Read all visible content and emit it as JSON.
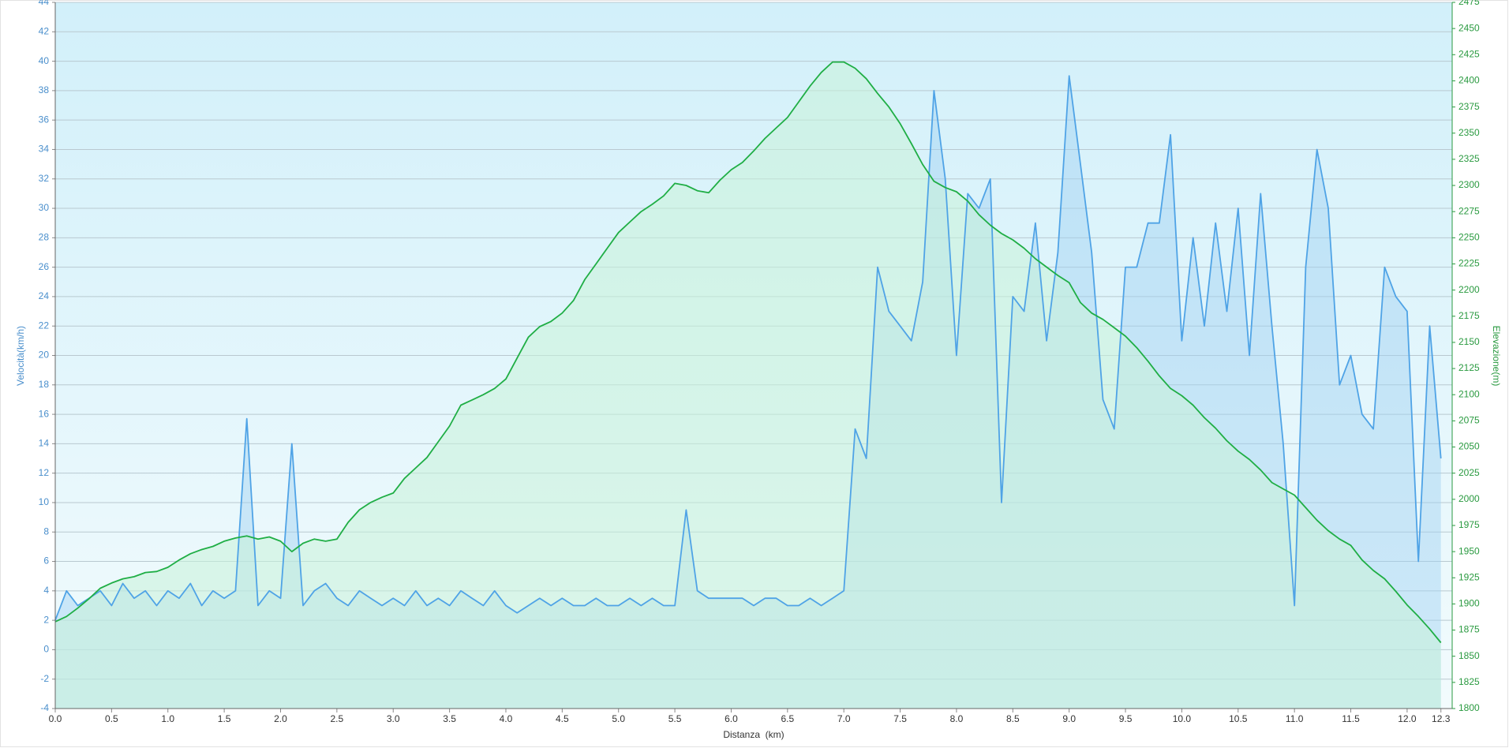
{
  "chart_data": {
    "type": "line",
    "xlabel": "Distanza  (km)",
    "ylabel": "Velocità(km/h)",
    "y2label": "Elevazione(m)",
    "x": [
      0,
      0.1,
      0.2,
      0.3,
      0.4,
      0.5,
      0.6,
      0.7,
      0.8,
      0.9,
      1,
      1.1,
      1.2,
      1.3,
      1.4,
      1.5,
      1.6,
      1.7,
      1.8,
      1.9,
      2,
      2.1,
      2.2,
      2.3,
      2.4,
      2.5,
      2.6,
      2.7,
      2.8,
      2.9,
      3,
      3.1,
      3.2,
      3.3,
      3.4,
      3.5,
      3.6,
      3.7,
      3.8,
      3.9,
      4,
      4.1,
      4.2,
      4.3,
      4.4,
      4.5,
      4.6,
      4.7,
      4.8,
      4.9,
      5,
      5.1,
      5.2,
      5.3,
      5.4,
      5.5,
      5.6,
      5.7,
      5.8,
      5.9,
      6,
      6.1,
      6.2,
      6.3,
      6.4,
      6.5,
      6.6,
      6.7,
      6.8,
      6.9,
      7,
      7.1,
      7.2,
      7.3,
      7.4,
      7.5,
      7.6,
      7.7,
      7.8,
      7.9,
      8,
      8.1,
      8.2,
      8.3,
      8.4,
      8.5,
      8.6,
      8.7,
      8.8,
      8.9,
      9,
      9.1,
      9.2,
      9.3,
      9.4,
      9.5,
      9.6,
      9.7,
      9.8,
      9.9,
      10,
      10.1,
      10.2,
      10.3,
      10.4,
      10.5,
      10.6,
      10.7,
      10.8,
      10.9,
      11,
      11.1,
      11.2,
      11.3,
      11.4,
      11.5,
      11.6,
      11.7,
      11.8,
      11.9,
      12,
      12.1,
      12.2,
      12.3
    ],
    "series": [
      {
        "name": "Velocità",
        "color": "#4fa3e6",
        "fill": "#9fd0f2",
        "values": [
          2,
          4,
          3,
          3.5,
          4,
          3,
          4.5,
          3.5,
          4,
          3,
          4,
          3.5,
          4.5,
          3,
          4,
          3.5,
          4,
          15.7,
          3,
          4,
          3.5,
          14,
          3,
          4,
          4.5,
          3.5,
          3,
          4,
          3.5,
          3,
          3.5,
          3,
          4,
          3,
          3.5,
          3,
          4,
          3.5,
          3,
          4,
          3,
          2.5,
          3,
          3.5,
          3,
          3.5,
          3,
          3,
          3.5,
          3,
          3,
          3.5,
          3,
          3.5,
          3,
          3,
          9.5,
          4,
          3.5,
          3.5,
          3.5,
          3.5,
          3,
          3.5,
          3.5,
          3,
          3,
          3.5,
          3,
          3.5,
          4,
          15,
          13,
          26,
          23,
          22,
          21,
          25,
          38,
          32,
          20,
          31,
          30,
          32,
          10,
          24,
          23,
          29,
          21,
          27,
          39,
          33,
          27,
          17,
          15,
          26,
          26,
          29,
          29,
          35,
          21,
          28,
          22,
          29,
          23,
          30,
          20,
          31,
          22,
          14,
          3,
          26,
          34,
          30,
          18,
          20,
          16,
          15,
          26,
          24,
          23,
          6,
          22,
          13
        ]
      },
      {
        "name": "Elevazione",
        "color": "#1fae45",
        "fill": "#c8f2d8",
        "axis": "y2",
        "values": [
          1883,
          1888,
          1896,
          1905,
          1915,
          1920,
          1924,
          1926,
          1930,
          1931,
          1935,
          1942,
          1948,
          1952,
          1955,
          1960,
          1963,
          1965,
          1962,
          1964,
          1960,
          1950,
          1958,
          1962,
          1960,
          1962,
          1978,
          1990,
          1997,
          2002,
          2006,
          2020,
          2030,
          2040,
          2055,
          2070,
          2090,
          2095,
          2100,
          2106,
          2115,
          2135,
          2155,
          2165,
          2170,
          2178,
          2190,
          2210,
          2225,
          2240,
          2255,
          2265,
          2275,
          2282,
          2290,
          2302,
          2300,
          2295,
          2293,
          2305,
          2315,
          2322,
          2333,
          2345,
          2355,
          2365,
          2380,
          2395,
          2408,
          2418,
          2418,
          2412,
          2402,
          2388,
          2375,
          2359,
          2340,
          2320,
          2304,
          2298,
          2294,
          2285,
          2272,
          2262,
          2254,
          2248,
          2240,
          2230,
          2222,
          2214,
          2207,
          2188,
          2178,
          2172,
          2164,
          2156,
          2145,
          2132,
          2118,
          2106,
          2099,
          2090,
          2078,
          2068,
          2056,
          2046,
          2038,
          2028,
          2016,
          2010,
          2004,
          1992,
          1980,
          1970,
          1962,
          1956,
          1942,
          1932,
          1924,
          1912,
          1899,
          1888,
          1876,
          1863
        ]
      }
    ],
    "xlim": [
      0,
      12.4
    ],
    "xticks": [
      {
        "value": 0,
        "label": "0.0"
      },
      0.5,
      {
        "value": 1,
        "label": "1.0"
      },
      1.5,
      {
        "value": 2,
        "label": "2.0"
      },
      2.5,
      {
        "value": 3,
        "label": "3.0"
      },
      3.5,
      {
        "value": 4,
        "label": "4.0"
      },
      4.5,
      {
        "value": 5,
        "label": "5.0"
      },
      5.5,
      {
        "value": 6,
        "label": "6.0"
      },
      6.5,
      {
        "value": 7,
        "label": "7.0"
      },
      7.5,
      {
        "value": 8,
        "label": "8.0"
      },
      8.5,
      {
        "value": 9,
        "label": "9.0"
      },
      9.5,
      {
        "value": 10,
        "label": "10.0"
      },
      10.5,
      {
        "value": 11,
        "label": "11.0"
      },
      11.5,
      {
        "value": 12,
        "label": "12.0"
      },
      12.3
    ],
    "ylim": [
      -4,
      44
    ],
    "yticks": [
      -4,
      -2,
      0,
      2,
      4,
      6,
      8,
      10,
      12,
      14,
      16,
      18,
      20,
      22,
      24,
      26,
      28,
      30,
      32,
      34,
      36,
      38,
      40,
      42,
      44
    ],
    "y2lim": [
      1800,
      2475
    ],
    "y2ticks": [
      1800,
      1825,
      1850,
      1875,
      1900,
      1925,
      1950,
      1975,
      2000,
      2025,
      2050,
      2075,
      2100,
      2125,
      2150,
      2175,
      2200,
      2225,
      2250,
      2275,
      2300,
      2325,
      2350,
      2375,
      2400,
      2425,
      2450,
      2475
    ],
    "grid": true
  }
}
